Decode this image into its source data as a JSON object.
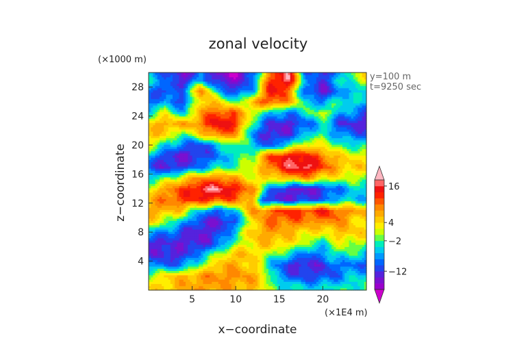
{
  "chart_data": {
    "type": "heatmap",
    "title": "zonal velocity",
    "xlabel": "x−coordinate",
    "ylabel": "z−coordinate",
    "x_unit": "(×1E4 m)",
    "y_unit": "(×1000 m)",
    "annotations": [
      "y=100 m",
      "t=9250 sec"
    ],
    "xlim": [
      0,
      25
    ],
    "ylim": [
      0,
      30
    ],
    "x_ticks": [
      5,
      10,
      15,
      20
    ],
    "y_ticks": [
      4,
      8,
      12,
      16,
      20,
      24,
      28
    ],
    "x_tick_labels": [
      "5",
      "10",
      "15",
      "20"
    ],
    "y_tick_labels": [
      "4",
      "8",
      "12",
      "16",
      "20",
      "24",
      "28"
    ],
    "colorbar": {
      "levels": [
        -18,
        -16,
        -14,
        -12,
        -10,
        -8,
        -6,
        -4,
        -2,
        0,
        2,
        4,
        6,
        8,
        10,
        12,
        14,
        16,
        18
      ],
      "colors": [
        "#cc00cc",
        "#9900cc",
        "#7a10d0",
        "#5522dd",
        "#2244ee",
        "#0066ff",
        "#0099ff",
        "#00ccee",
        "#00eebb",
        "#66ff44",
        "#ccff00",
        "#ffee00",
        "#ffcc00",
        "#ffaa00",
        "#ff8800",
        "#ff5500",
        "#ff2200",
        "#ee1111",
        "#ff6666",
        "#ffb6c1"
      ],
      "tick_labels": [
        "16",
        "4",
        "−2",
        "−12"
      ],
      "tick_values": [
        16,
        4,
        -2,
        -12
      ],
      "extend": "both"
    },
    "bands": [
      {
        "z": 0.5,
        "pts": [
          [
            0,
            3
          ],
          [
            3,
            6
          ],
          [
            6,
            8
          ],
          [
            9,
            7
          ],
          [
            12,
            6
          ],
          [
            15,
            -3
          ],
          [
            18,
            -5
          ],
          [
            21,
            -4
          ],
          [
            25,
            -2
          ]
        ]
      },
      {
        "z": 2.0,
        "pts": [
          [
            0,
            0
          ],
          [
            2,
            4
          ],
          [
            5,
            7
          ],
          [
            8,
            9
          ],
          [
            11,
            8
          ],
          [
            13,
            5
          ],
          [
            15,
            -8
          ],
          [
            18,
            -12
          ],
          [
            21,
            -10
          ],
          [
            23,
            -6
          ],
          [
            25,
            -4
          ]
        ]
      },
      {
        "z": 3.5,
        "pts": [
          [
            0,
            -6
          ],
          [
            2,
            -10
          ],
          [
            4,
            -8
          ],
          [
            7,
            3
          ],
          [
            9,
            7
          ],
          [
            12,
            5
          ],
          [
            14,
            -6
          ],
          [
            17,
            -14
          ],
          [
            20,
            -12
          ],
          [
            22,
            -8
          ],
          [
            25,
            -10
          ]
        ]
      },
      {
        "z": 5.0,
        "pts": [
          [
            0,
            -12
          ],
          [
            3,
            -14
          ],
          [
            5,
            -10
          ],
          [
            7,
            -4
          ],
          [
            9,
            4
          ],
          [
            11,
            6
          ],
          [
            13,
            2
          ],
          [
            15,
            -2
          ],
          [
            17,
            -6
          ],
          [
            19,
            -10
          ],
          [
            21,
            -4
          ],
          [
            23,
            -2
          ],
          [
            25,
            -6
          ]
        ]
      },
      {
        "z": 6.5,
        "pts": [
          [
            0,
            -14
          ],
          [
            3,
            -12
          ],
          [
            5,
            -14
          ],
          [
            7,
            -12
          ],
          [
            9,
            -6
          ],
          [
            11,
            2
          ],
          [
            12,
            4
          ],
          [
            14,
            6
          ],
          [
            16,
            4
          ],
          [
            18,
            0
          ],
          [
            20,
            -4
          ],
          [
            22,
            2
          ],
          [
            25,
            0
          ]
        ]
      },
      {
        "z": 8.0,
        "pts": [
          [
            0,
            -6
          ],
          [
            2,
            -8
          ],
          [
            4,
            -12
          ],
          [
            6,
            -14
          ],
          [
            8,
            -12
          ],
          [
            10,
            -4
          ],
          [
            12,
            6
          ],
          [
            14,
            8
          ],
          [
            16,
            6
          ],
          [
            18,
            4
          ],
          [
            20,
            2
          ],
          [
            22,
            6
          ],
          [
            25,
            4
          ]
        ]
      },
      {
        "z": 9.5,
        "pts": [
          [
            0,
            4
          ],
          [
            2,
            0
          ],
          [
            4,
            -6
          ],
          [
            6,
            -12
          ],
          [
            8,
            -14
          ],
          [
            10,
            -10
          ],
          [
            12,
            4
          ],
          [
            14,
            10
          ],
          [
            17,
            10
          ],
          [
            19,
            8
          ],
          [
            21,
            10
          ],
          [
            23,
            6
          ],
          [
            25,
            2
          ]
        ]
      },
      {
        "z": 11.0,
        "pts": [
          [
            0,
            8
          ],
          [
            2,
            6
          ],
          [
            4,
            4
          ],
          [
            6,
            -6
          ],
          [
            8,
            -10
          ],
          [
            10,
            -4
          ],
          [
            12,
            8
          ],
          [
            14,
            10
          ],
          [
            16,
            14
          ],
          [
            18,
            12
          ],
          [
            20,
            14
          ],
          [
            22,
            10
          ],
          [
            25,
            6
          ]
        ]
      },
      {
        "z": 12.5,
        "pts": [
          [
            0,
            6
          ],
          [
            2,
            10
          ],
          [
            4,
            12
          ],
          [
            6,
            14
          ],
          [
            8,
            12
          ],
          [
            10,
            10
          ],
          [
            12,
            6
          ],
          [
            13,
            -10
          ],
          [
            15,
            -14
          ],
          [
            18,
            -12
          ],
          [
            21,
            -8
          ],
          [
            23,
            -4
          ],
          [
            25,
            -6
          ]
        ]
      },
      {
        "z": 14.0,
        "pts": [
          [
            0,
            2
          ],
          [
            2,
            8
          ],
          [
            4,
            12
          ],
          [
            6,
            16
          ],
          [
            8,
            18
          ],
          [
            10,
            14
          ],
          [
            12,
            8
          ],
          [
            14,
            -8
          ],
          [
            16,
            -14
          ],
          [
            19,
            -14
          ],
          [
            21,
            -10
          ],
          [
            23,
            -6
          ],
          [
            25,
            -4
          ]
        ]
      },
      {
        "z": 15.5,
        "pts": [
          [
            0,
            -4
          ],
          [
            2,
            -2
          ],
          [
            4,
            4
          ],
          [
            6,
            8
          ],
          [
            8,
            10
          ],
          [
            10,
            6
          ],
          [
            12,
            2
          ],
          [
            14,
            4
          ],
          [
            16,
            6
          ],
          [
            18,
            8
          ],
          [
            20,
            4
          ],
          [
            22,
            2
          ],
          [
            25,
            0
          ]
        ]
      },
      {
        "z": 17.0,
        "pts": [
          [
            0,
            -10
          ],
          [
            2,
            -14
          ],
          [
            4,
            -12
          ],
          [
            6,
            -8
          ],
          [
            8,
            -4
          ],
          [
            10,
            -2
          ],
          [
            12,
            2
          ],
          [
            14,
            10
          ],
          [
            16,
            16
          ],
          [
            18,
            18
          ],
          [
            20,
            12
          ],
          [
            22,
            6
          ],
          [
            25,
            4
          ]
        ]
      },
      {
        "z": 18.5,
        "pts": [
          [
            0,
            -6
          ],
          [
            2,
            -12
          ],
          [
            4,
            -14
          ],
          [
            6,
            -12
          ],
          [
            8,
            -8
          ],
          [
            10,
            -4
          ],
          [
            12,
            0
          ],
          [
            14,
            12
          ],
          [
            16,
            16
          ],
          [
            18,
            14
          ],
          [
            20,
            10
          ],
          [
            22,
            4
          ],
          [
            25,
            2
          ]
        ]
      },
      {
        "z": 20.0,
        "pts": [
          [
            0,
            2
          ],
          [
            2,
            -4
          ],
          [
            4,
            -10
          ],
          [
            6,
            -12
          ],
          [
            8,
            -6
          ],
          [
            10,
            0
          ],
          [
            12,
            -6
          ],
          [
            14,
            -10
          ],
          [
            16,
            -4
          ],
          [
            18,
            4
          ],
          [
            20,
            2
          ],
          [
            22,
            -2
          ],
          [
            25,
            -4
          ]
        ]
      },
      {
        "z": 21.5,
        "pts": [
          [
            0,
            6
          ],
          [
            2,
            4
          ],
          [
            4,
            -2
          ],
          [
            6,
            4
          ],
          [
            8,
            10
          ],
          [
            10,
            8
          ],
          [
            12,
            -8
          ],
          [
            14,
            -14
          ],
          [
            16,
            -12
          ],
          [
            18,
            -6
          ],
          [
            20,
            -2
          ],
          [
            22,
            -8
          ],
          [
            25,
            -10
          ]
        ]
      },
      {
        "z": 23.0,
        "pts": [
          [
            0,
            4
          ],
          [
            2,
            8
          ],
          [
            4,
            6
          ],
          [
            6,
            10
          ],
          [
            8,
            16
          ],
          [
            10,
            14
          ],
          [
            12,
            -4
          ],
          [
            14,
            -12
          ],
          [
            16,
            -14
          ],
          [
            18,
            -10
          ],
          [
            20,
            -4
          ],
          [
            22,
            -12
          ],
          [
            25,
            -14
          ]
        ]
      },
      {
        "z": 24.5,
        "pts": [
          [
            0,
            -4
          ],
          [
            2,
            2
          ],
          [
            4,
            -6
          ],
          [
            6,
            8
          ],
          [
            8,
            12
          ],
          [
            10,
            10
          ],
          [
            12,
            2
          ],
          [
            14,
            -6
          ],
          [
            16,
            -8
          ],
          [
            18,
            -4
          ],
          [
            20,
            2
          ],
          [
            22,
            -6
          ],
          [
            25,
            -10
          ]
        ]
      },
      {
        "z": 26.0,
        "pts": [
          [
            0,
            -10
          ],
          [
            2,
            -6
          ],
          [
            4,
            -12
          ],
          [
            6,
            6
          ],
          [
            8,
            4
          ],
          [
            10,
            -2
          ],
          [
            12,
            6
          ],
          [
            14,
            12
          ],
          [
            16,
            8
          ],
          [
            18,
            -4
          ],
          [
            20,
            -8
          ],
          [
            22,
            -2
          ],
          [
            25,
            -6
          ]
        ]
      },
      {
        "z": 27.5,
        "pts": [
          [
            0,
            -8
          ],
          [
            2,
            -12
          ],
          [
            4,
            -8
          ],
          [
            6,
            10
          ],
          [
            8,
            -6
          ],
          [
            10,
            -12
          ],
          [
            12,
            -6
          ],
          [
            14,
            16
          ],
          [
            16,
            10
          ],
          [
            18,
            -10
          ],
          [
            20,
            -14
          ],
          [
            22,
            -8
          ],
          [
            25,
            -4
          ]
        ]
      },
      {
        "z": 29.0,
        "pts": [
          [
            0,
            -4
          ],
          [
            2,
            -8
          ],
          [
            4,
            -14
          ],
          [
            6,
            -6
          ],
          [
            8,
            -14
          ],
          [
            10,
            -16
          ],
          [
            12,
            -8
          ],
          [
            14,
            12
          ],
          [
            16,
            18
          ],
          [
            18,
            -6
          ],
          [
            20,
            -12
          ],
          [
            22,
            -4
          ],
          [
            25,
            2
          ]
        ]
      },
      {
        "z": 30.0,
        "pts": [
          [
            0,
            -6
          ],
          [
            2,
            -10
          ],
          [
            4,
            -16
          ],
          [
            6,
            -8
          ],
          [
            8,
            -16
          ],
          [
            10,
            -18
          ],
          [
            12,
            -10
          ],
          [
            14,
            10
          ],
          [
            16,
            18
          ],
          [
            18,
            -8
          ],
          [
            20,
            -14
          ],
          [
            22,
            -6
          ],
          [
            25,
            4
          ]
        ]
      }
    ]
  }
}
